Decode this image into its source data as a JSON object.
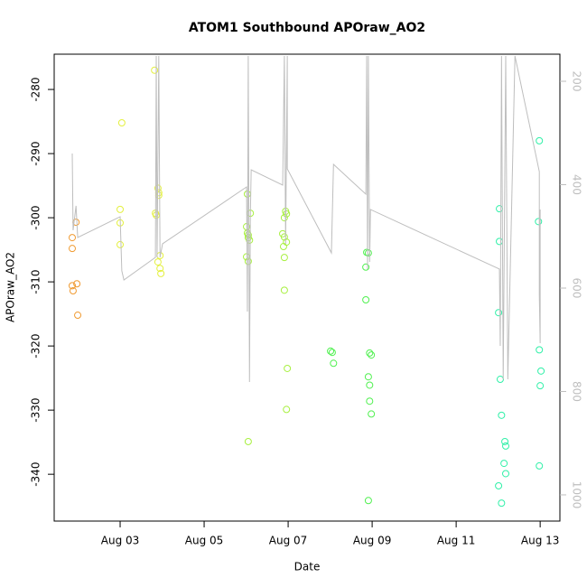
{
  "chart_data": {
    "type": "scatter",
    "title": "ATOM1 Southbound APOraw_AO2",
    "xlabel": "Date",
    "ylabel": "APOraw_AO2",
    "xlim": [
      1.43,
      13.47
    ],
    "xticks": [
      {
        "value": 3,
        "label": "Aug 03"
      },
      {
        "value": 5,
        "label": "Aug 05"
      },
      {
        "value": 7,
        "label": "Aug 07"
      },
      {
        "value": 9,
        "label": "Aug 09"
      },
      {
        "value": 11,
        "label": "Aug 11"
      },
      {
        "value": 13,
        "label": "Aug 13"
      }
    ],
    "ylim": [
      -347.3,
      -274.5
    ],
    "yticks": [
      -340,
      -330,
      -320,
      -310,
      -300,
      -290,
      -280
    ],
    "y2lim": [
      1050.7,
      147.6
    ],
    "y2ticks": [
      200,
      400,
      600,
      800,
      1000
    ],
    "series": [
      {
        "type": "points",
        "color": "#F09A30",
        "x": [
          1.86,
          1.86,
          1.86,
          1.88,
          1.95,
          1.97,
          1.99
        ],
        "values": [
          -303.1,
          -304.8,
          -310.6,
          -311.4,
          -300.7,
          -310.3,
          -315.2
        ]
      },
      {
        "type": "points",
        "color": "#E4F040",
        "x": [
          3.04,
          3.0,
          3.0,
          3.0,
          3.82,
          3.84,
          3.9,
          3.92,
          3.92,
          3.86,
          3.9,
          3.95,
          3.95,
          3.97
        ],
        "values": [
          -285.2,
          -298.7,
          -300.8,
          -304.2,
          -277.0,
          -299.3,
          -295.4,
          -296.1,
          -296.5,
          -299.6,
          -306.9,
          -305.9,
          -307.9,
          -308.7
        ]
      },
      {
        "type": "points",
        "color": "#A8F040",
        "x": [
          6.03,
          6.01,
          6.03,
          6.05,
          6.05,
          6.08,
          6.01,
          6.05,
          6.1,
          6.05,
          6.87,
          6.91,
          6.94,
          6.96,
          6.91,
          6.96,
          6.89,
          6.91,
          6.91,
          6.98,
          6.96
        ],
        "values": [
          -296.3,
          -301.4,
          -302.4,
          -302.7,
          -303.1,
          -303.5,
          -306.1,
          -306.8,
          -299.3,
          -334.9,
          -302.5,
          -303.0,
          -299.0,
          -299.4,
          -300.0,
          -303.8,
          -304.5,
          -306.2,
          -311.3,
          -323.5,
          -329.9
        ]
      },
      {
        "type": "points",
        "color": "#50F050",
        "x": [
          8.01,
          8.05,
          8.08,
          8.87,
          8.91,
          8.85,
          8.85,
          8.94,
          8.98,
          8.94,
          8.91,
          8.94,
          8.98,
          8.91
        ],
        "values": [
          -320.8,
          -321.0,
          -322.7,
          -305.4,
          -305.5,
          -307.7,
          -312.8,
          -321.1,
          -321.4,
          -326.1,
          -324.8,
          -328.6,
          -330.6,
          -344.1
        ]
      },
      {
        "type": "points",
        "color": "#30F0A8",
        "x": [
          12.03,
          12.03,
          12.01,
          12.05,
          12.08,
          12.16,
          12.18,
          12.14,
          12.18,
          12.01,
          12.08,
          12.98,
          12.96,
          12.98,
          13.02,
          13.0,
          12.98
        ],
        "values": [
          -298.6,
          -303.7,
          -314.8,
          -325.2,
          -330.8,
          -334.9,
          -335.6,
          -338.3,
          -339.9,
          -341.8,
          -344.5,
          -288.0,
          -300.6,
          -320.6,
          -323.9,
          -326.2,
          -338.7
        ]
      },
      {
        "type": "line",
        "axis": "y2",
        "color": "#BEBEBE",
        "x": [
          1.86,
          1.88,
          1.95,
          1.99,
          3.0,
          3.04,
          3.09,
          3.84,
          3.86,
          3.88,
          3.92,
          3.95,
          4.01,
          6.01,
          6.03,
          6.05,
          6.08,
          6.1,
          6.12,
          6.87,
          6.91,
          6.94,
          6.98,
          6.98,
          8.03,
          8.08,
          8.85,
          8.87,
          8.89,
          8.91,
          8.94,
          8.96,
          12.03,
          12.05,
          12.08,
          12.12,
          12.18,
          12.23,
          12.4,
          12.98,
          12.98,
          13.0,
          13.0
        ],
        "values": [
          339.7,
          488.2,
          441.0,
          502.2,
          462.0,
          566.8,
          584.3,
          540.6,
          151.1,
          540.6,
          151.1,
          540.6,
          514.4,
          404.4,
          645.4,
          151.1,
          781.7,
          462.0,
          371.2,
          400.9,
          151.1,
          514.4,
          151.1,
          369.4,
          531.9,
          360.7,
          418.3,
          151.1,
          563.3,
          151.1,
          549.3,
          448.0,
          563.3,
          711.8,
          151.1,
          776.4,
          151.1,
          776.4,
          151.1,
          374.7,
          614.0,
          706.6,
          448.0
        ]
      }
    ]
  }
}
